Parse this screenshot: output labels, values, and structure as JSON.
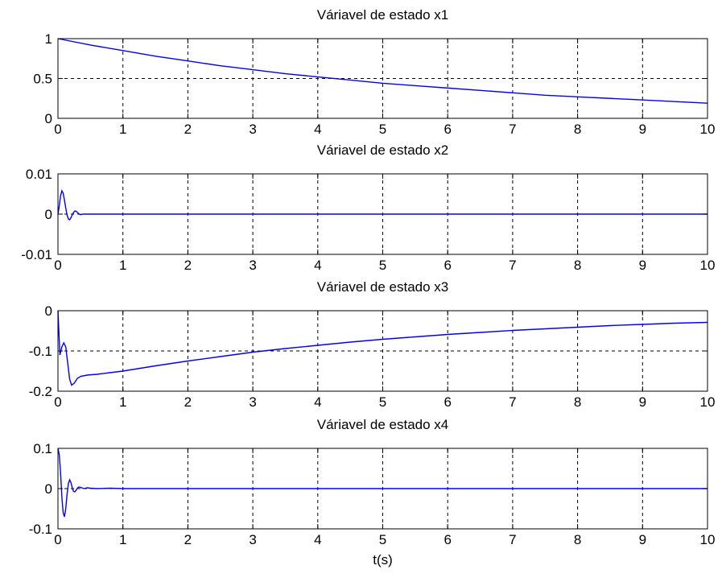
{
  "chart_data": [
    {
      "type": "line",
      "title": "Váriavel de estado x1",
      "xlabel": "",
      "ylabel": "",
      "xlim": [
        0,
        10
      ],
      "ylim": [
        0,
        1
      ],
      "x_ticks": [
        "0",
        "1",
        "2",
        "3",
        "4",
        "5",
        "6",
        "7",
        "8",
        "9",
        "10"
      ],
      "y_ticks": [
        "0",
        "0.5",
        "1"
      ],
      "y_tick_values": [
        0,
        0.5,
        1
      ],
      "grid": true,
      "color": "#0000ff",
      "series": [
        {
          "x": [
            0,
            0.5,
            1,
            1.5,
            2,
            2.5,
            3,
            3.5,
            4,
            4.5,
            5,
            5.5,
            6,
            6.5,
            7,
            7.5,
            8,
            8.5,
            9,
            9.5,
            10
          ],
          "y": [
            1.0,
            0.92,
            0.85,
            0.78,
            0.72,
            0.66,
            0.61,
            0.56,
            0.52,
            0.48,
            0.44,
            0.41,
            0.38,
            0.35,
            0.32,
            0.29,
            0.27,
            0.25,
            0.23,
            0.21,
            0.19
          ]
        }
      ]
    },
    {
      "type": "line",
      "title": "Váriavel de estado x2",
      "xlabel": "",
      "ylabel": "",
      "xlim": [
        0,
        10
      ],
      "ylim": [
        -0.01,
        0.01
      ],
      "x_ticks": [
        "0",
        "1",
        "2",
        "3",
        "4",
        "5",
        "6",
        "7",
        "8",
        "9",
        "10"
      ],
      "y_ticks": [
        "-0.01",
        "0",
        "0.01"
      ],
      "y_tick_values": [
        -0.01,
        0,
        0.01
      ],
      "grid": true,
      "color": "#0000ff",
      "series": [
        {
          "x": [
            0,
            0.02,
            0.04,
            0.06,
            0.08,
            0.1,
            0.12,
            0.14,
            0.16,
            0.18,
            0.2,
            0.22,
            0.24,
            0.26,
            0.28,
            0.3,
            0.32,
            0.34,
            0.36,
            0.38,
            0.4,
            0.5,
            1,
            10
          ],
          "y": [
            0,
            0.002,
            0.0045,
            0.0058,
            0.0052,
            0.0035,
            0.0015,
            -0.0002,
            -0.0012,
            -0.0014,
            -0.0009,
            -0.0002,
            0.0004,
            0.0008,
            0.0007,
            0.0004,
            0.0001,
            -0.0001,
            -0.0001,
            0,
            0,
            0,
            0,
            0
          ]
        }
      ]
    },
    {
      "type": "line",
      "title": "Váriavel de estado x3",
      "xlabel": "",
      "ylabel": "",
      "xlim": [
        0,
        10
      ],
      "ylim": [
        -0.2,
        0
      ],
      "x_ticks": [
        "0",
        "1",
        "2",
        "3",
        "4",
        "5",
        "6",
        "7",
        "8",
        "9",
        "10"
      ],
      "y_ticks": [
        "-0.2",
        "-0.1",
        "0"
      ],
      "y_tick_values": [
        -0.2,
        -0.1,
        0
      ],
      "grid": true,
      "color": "#0000ff",
      "series": [
        {
          "x": [
            0,
            0.03,
            0.06,
            0.09,
            0.12,
            0.15,
            0.18,
            0.21,
            0.25,
            0.3,
            0.35,
            0.45,
            0.6,
            0.8,
            1,
            1.5,
            2,
            2.5,
            3,
            3.5,
            4,
            4.5,
            5,
            5.5,
            6,
            6.5,
            7,
            7.5,
            8,
            8.5,
            9,
            9.5,
            10
          ],
          "y": [
            0,
            -0.11,
            -0.09,
            -0.08,
            -0.09,
            -0.13,
            -0.17,
            -0.185,
            -0.18,
            -0.168,
            -0.163,
            -0.16,
            -0.158,
            -0.154,
            -0.15,
            -0.137,
            -0.125,
            -0.114,
            -0.103,
            -0.094,
            -0.086,
            -0.078,
            -0.071,
            -0.065,
            -0.059,
            -0.054,
            -0.049,
            -0.045,
            -0.041,
            -0.037,
            -0.034,
            -0.031,
            -0.029
          ]
        }
      ]
    },
    {
      "type": "line",
      "title": "Váriavel de estado x4",
      "xlabel": "t(s)",
      "ylabel": "",
      "xlim": [
        0,
        10
      ],
      "ylim": [
        -0.1,
        0.1
      ],
      "x_ticks": [
        "0",
        "1",
        "2",
        "3",
        "4",
        "5",
        "6",
        "7",
        "8",
        "9",
        "10"
      ],
      "y_ticks": [
        "-0.1",
        "0",
        "0.1"
      ],
      "y_tick_values": [
        -0.1,
        0,
        0.1
      ],
      "grid": true,
      "color": "#0000ff",
      "series": [
        {
          "x": [
            0,
            0.02,
            0.04,
            0.06,
            0.08,
            0.1,
            0.12,
            0.14,
            0.16,
            0.18,
            0.2,
            0.22,
            0.24,
            0.26,
            0.28,
            0.3,
            0.32,
            0.35,
            0.4,
            0.45,
            0.5,
            0.6,
            0.8,
            1,
            10
          ],
          "y": [
            0.1,
            0.085,
            0.04,
            -0.02,
            -0.06,
            -0.07,
            -0.05,
            -0.015,
            0.012,
            0.022,
            0.015,
            0.002,
            -0.007,
            -0.008,
            -0.004,
            0.001,
            0.004,
            0.003,
            0.0,
            0.002,
            0.001,
            0.0,
            0.001,
            0.0,
            0.0
          ]
        }
      ]
    }
  ]
}
